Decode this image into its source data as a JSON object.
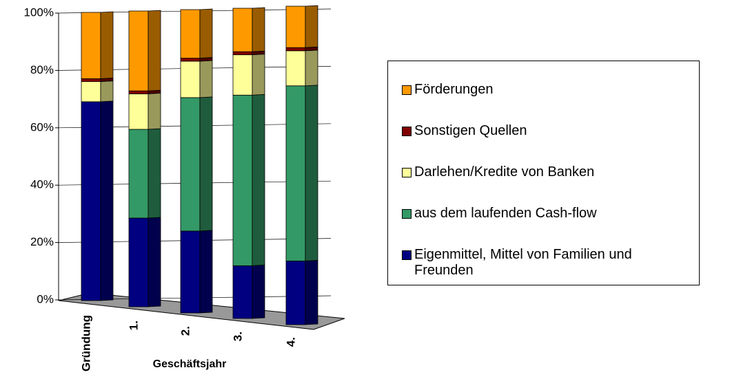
{
  "chart_data": {
    "type": "stacked_bar_3d",
    "categories": [
      "Gründung",
      "1.",
      "2.",
      "3.",
      "4."
    ],
    "x_label": "Geschäftsjahr",
    "series": [
      {
        "name": "Eigenmittel, Mittel von Familien und Freunden",
        "color": "#000080",
        "values": [
          69,
          30,
          27,
          17,
          20
        ]
      },
      {
        "name": "aus dem laufenden Cash-flow",
        "color": "#339966",
        "values": [
          0,
          30,
          44,
          55,
          55
        ]
      },
      {
        "name": "Darlehen/Kredite von Banken",
        "color": "#ffff99",
        "values": [
          7,
          12,
          12,
          13,
          11
        ]
      },
      {
        "name": "Sonstigen Quellen",
        "color": "#800000",
        "values": [
          1,
          1,
          1,
          1,
          1
        ]
      },
      {
        "name": "Förderungen",
        "color": "#ff9900",
        "values": [
          23,
          27,
          16,
          14,
          13
        ]
      }
    ],
    "ylim": [
      0,
      100
    ],
    "yticks": [
      {
        "value": 0,
        "label": "0%"
      },
      {
        "value": 20,
        "label": "20%"
      },
      {
        "value": 40,
        "label": "40%"
      },
      {
        "value": 60,
        "label": "60%"
      },
      {
        "value": 80,
        "label": "80%"
      },
      {
        "value": 100,
        "label": "100%"
      }
    ],
    "grid": true,
    "legend": "right"
  }
}
